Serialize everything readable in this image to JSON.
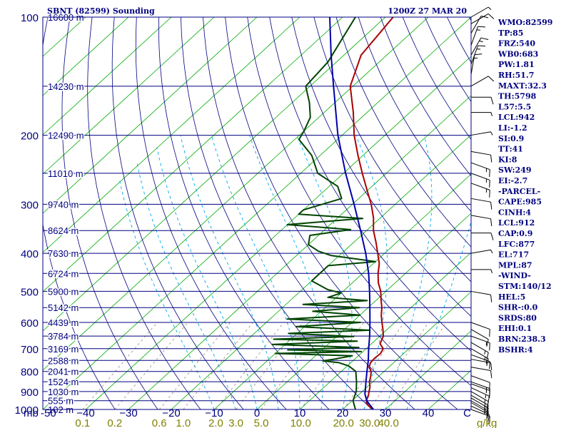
{
  "header": {
    "station": "SBNT (82599) Sounding",
    "time": "1200Z 27 MAR 20"
  },
  "chart_data": {
    "type": "line",
    "subtype": "skew-t log-p diagram",
    "pressure_unit": "mb",
    "mixing_ratio_unit": "g/kg",
    "pressure_range": [
      1000,
      100
    ],
    "temperature_range": [
      -50,
      50
    ],
    "pressure_ticks": [
      {
        "p": 100,
        "label": "100"
      },
      {
        "p": 200,
        "label": "200"
      },
      {
        "p": 300,
        "label": "300"
      },
      {
        "p": 400,
        "label": "400"
      },
      {
        "p": 500,
        "label": "500"
      },
      {
        "p": 600,
        "label": "600"
      },
      {
        "p": 700,
        "label": "700"
      },
      {
        "p": 800,
        "label": "800"
      },
      {
        "p": 900,
        "label": "900"
      },
      {
        "p": 1000,
        "label": "1000"
      }
    ],
    "height_levels": [
      {
        "p": 100,
        "label": "16600 m"
      },
      {
        "p": 150,
        "label": "14230 m"
      },
      {
        "p": 200,
        "label": "12490 m"
      },
      {
        "p": 250,
        "label": "11010 m"
      },
      {
        "p": 300,
        "label": "9740 m"
      },
      {
        "p": 350,
        "label": "8624 m"
      },
      {
        "p": 400,
        "label": "7630 m"
      },
      {
        "p": 450,
        "label": "6724 m"
      },
      {
        "p": 500,
        "label": "5900 m"
      },
      {
        "p": 550,
        "label": "5142 m"
      },
      {
        "p": 600,
        "label": "4439 m"
      },
      {
        "p": 650,
        "label": "3784 m"
      },
      {
        "p": 700,
        "label": "3169 m"
      },
      {
        "p": 750,
        "label": "2588 m"
      },
      {
        "p": 800,
        "label": "2041 m"
      },
      {
        "p": 850,
        "label": "1524 m"
      },
      {
        "p": 900,
        "label": "1030 m"
      },
      {
        "p": 950,
        "label": "555 m"
      },
      {
        "p": 1000,
        "label": "102 m"
      }
    ],
    "temperature_ticks": [
      {
        "t": -50,
        "label": "-50"
      },
      {
        "t": -40,
        "label": "−40"
      },
      {
        "t": -30,
        "label": "−30"
      },
      {
        "t": -20,
        "label": "−20"
      },
      {
        "t": -10,
        "label": "−10"
      },
      {
        "t": 0,
        "label": "0"
      },
      {
        "t": 10,
        "label": "10"
      },
      {
        "t": 20,
        "label": "20"
      },
      {
        "t": 30,
        "label": "30"
      },
      {
        "t": 40,
        "label": "40"
      },
      {
        "t": 50,
        "label": "C"
      }
    ],
    "mixing_ratio_labels": [
      "0.1",
      "0.2",
      "0.6",
      "1.0",
      "2.0",
      "3.0",
      "5.0",
      "10.0",
      "20.0",
      "30.0",
      "40.0"
    ],
    "mixing_ratio_ticks_t1000": [
      -40.7,
      -33.2,
      -22.8,
      -17.2,
      -9.6,
      -4.9,
      1.0,
      10.2,
      20.2,
      26.3,
      30.7
    ],
    "dry_adiabat_theta_K": [
      240,
      250,
      260,
      270,
      280,
      290,
      300,
      310,
      320,
      330,
      340,
      350,
      360,
      370,
      380,
      390,
      400,
      410,
      420,
      430,
      440,
      450
    ],
    "moist_adiabat_start_c": [
      -10,
      -5,
      0,
      5,
      10,
      15,
      20,
      25,
      30,
      35
    ],
    "series": [
      {
        "name": "temperature",
        "color": "#aa0000",
        "points": [
          [
            1000,
            27.2
          ],
          [
            980,
            25.2
          ],
          [
            960,
            23.8
          ],
          [
            940,
            23.0
          ],
          [
            925,
            22.6
          ],
          [
            900,
            21.6
          ],
          [
            875,
            20.6
          ],
          [
            850,
            19.2
          ],
          [
            825,
            18.2
          ],
          [
            800,
            17.0
          ],
          [
            780,
            15.4
          ],
          [
            760,
            14.6
          ],
          [
            740,
            14.4
          ],
          [
            720,
            14.6
          ],
          [
            700,
            14.0
          ],
          [
            680,
            12.0
          ],
          [
            650,
            10.8
          ],
          [
            625,
            9.0
          ],
          [
            600,
            7.0
          ],
          [
            575,
            5.0
          ],
          [
            550,
            3.2
          ],
          [
            525,
            1.0
          ],
          [
            500,
            -1.2
          ],
          [
            475,
            -4.0
          ],
          [
            450,
            -6.4
          ],
          [
            425,
            -8.6
          ],
          [
            400,
            -11.6
          ],
          [
            375,
            -14.8
          ],
          [
            350,
            -18.4
          ],
          [
            325,
            -21.6
          ],
          [
            300,
            -25.6
          ],
          [
            275,
            -30.4
          ],
          [
            250,
            -35.6
          ],
          [
            225,
            -41.2
          ],
          [
            200,
            -47.2
          ],
          [
            175,
            -53.2
          ],
          [
            150,
            -60.6
          ],
          [
            125,
            -66.0
          ],
          [
            100,
            -68.2
          ]
        ]
      },
      {
        "name": "dewpoint",
        "color": "#004400",
        "points": [
          [
            1000,
            23.0
          ],
          [
            950,
            20.2
          ],
          [
            900,
            18.6
          ],
          [
            850,
            16.2
          ],
          [
            800,
            13.4
          ],
          [
            775,
            10.4
          ],
          [
            760,
            7.2
          ],
          [
            752,
            3.0
          ],
          [
            745,
            5.0
          ],
          [
            730,
            8.6
          ],
          [
            720,
            -10.0
          ],
          [
            712,
            9.6
          ],
          [
            705,
            -8.0
          ],
          [
            695,
            8.0
          ],
          [
            683,
            -13.0
          ],
          [
            670,
            6.0
          ],
          [
            662,
            -14.0
          ],
          [
            652,
            4.0
          ],
          [
            640,
            -12.0
          ],
          [
            628,
            6.0
          ],
          [
            615,
            -12.0
          ],
          [
            600,
            2.0
          ],
          [
            588,
            -16.0
          ],
          [
            575,
            0.0
          ],
          [
            562,
            -12.0
          ],
          [
            550,
            -2.0
          ],
          [
            540,
            -16.0
          ],
          [
            528,
            -2.0
          ],
          [
            518,
            -12.0
          ],
          [
            505,
            -10.0
          ],
          [
            495,
            -14.0
          ],
          [
            470,
            -20.0
          ],
          [
            450,
            -20.0
          ],
          [
            430,
            -20.0
          ],
          [
            420,
            -10.0
          ],
          [
            405,
            -22.0
          ],
          [
            395,
            -26.0
          ],
          [
            380,
            -30.0
          ],
          [
            360,
            -32.0
          ],
          [
            348,
            -24.0
          ],
          [
            338,
            -40.0
          ],
          [
            326,
            -24.0
          ],
          [
            318,
            -40.0
          ],
          [
            310,
            -40.0
          ],
          [
            290,
            -34.0
          ],
          [
            270,
            -38.0
          ],
          [
            250,
            -46.0
          ],
          [
            225,
            -52.0
          ],
          [
            205,
            -59.0
          ],
          [
            195,
            -60.0
          ],
          [
            180,
            -62.0
          ],
          [
            165,
            -66.0
          ],
          [
            150,
            -71.0
          ],
          [
            130,
            -72.0
          ],
          [
            100,
            -77.0
          ]
        ]
      },
      {
        "name": "parcel",
        "color": "#0000aa",
        "points": [
          [
            1000,
            27.2
          ],
          [
            950,
            23.4
          ],
          [
            912,
            21.2
          ],
          [
            900,
            20.7
          ],
          [
            850,
            18.4
          ],
          [
            800,
            16.0
          ],
          [
            750,
            13.5
          ],
          [
            700,
            10.6
          ],
          [
            650,
            7.6
          ],
          [
            600,
            4.2
          ],
          [
            550,
            0.4
          ],
          [
            500,
            -3.8
          ],
          [
            450,
            -8.6
          ],
          [
            400,
            -14.4
          ],
          [
            350,
            -21.4
          ],
          [
            300,
            -29.6
          ],
          [
            250,
            -39.5
          ],
          [
            200,
            -51.0
          ],
          [
            150,
            -64.5
          ],
          [
            125,
            -73.0
          ],
          [
            100,
            -83.0
          ]
        ]
      }
    ],
    "wind_barbs": [
      {
        "p": 1000,
        "dir": 110,
        "kt": 10
      },
      {
        "p": 980,
        "dir": 115,
        "kt": 12
      },
      {
        "p": 960,
        "dir": 120,
        "kt": 15
      },
      {
        "p": 950,
        "dir": 120,
        "kt": 15
      },
      {
        "p": 935,
        "dir": 120,
        "kt": 15
      },
      {
        "p": 920,
        "dir": 120,
        "kt": 15
      },
      {
        "p": 900,
        "dir": 120,
        "kt": 15
      },
      {
        "p": 880,
        "dir": 115,
        "kt": 15
      },
      {
        "p": 860,
        "dir": 110,
        "kt": 15
      },
      {
        "p": 850,
        "dir": 110,
        "kt": 15
      },
      {
        "p": 820,
        "dir": 110,
        "kt": 10
      },
      {
        "p": 780,
        "dir": 100,
        "kt": 10
      },
      {
        "p": 745,
        "dir": 100,
        "kt": 10
      },
      {
        "p": 725,
        "dir": 110,
        "kt": 15
      },
      {
        "p": 700,
        "dir": 120,
        "kt": 15
      },
      {
        "p": 675,
        "dir": 120,
        "kt": 15
      },
      {
        "p": 650,
        "dir": 110,
        "kt": 15
      },
      {
        "p": 625,
        "dir": 120,
        "kt": 10
      },
      {
        "p": 600,
        "dir": 110,
        "kt": 10
      },
      {
        "p": 500,
        "dir": 100,
        "kt": 10
      },
      {
        "p": 440,
        "dir": 90,
        "kt": 5
      },
      {
        "p": 400,
        "dir": 80,
        "kt": 5
      },
      {
        "p": 355,
        "dir": 90,
        "kt": 10
      },
      {
        "p": 320,
        "dir": 100,
        "kt": 10
      },
      {
        "p": 290,
        "dir": 100,
        "kt": 10
      },
      {
        "p": 265,
        "dir": 110,
        "kt": 15
      },
      {
        "p": 250,
        "dir": 110,
        "kt": 15
      },
      {
        "p": 235,
        "dir": 110,
        "kt": 15
      },
      {
        "p": 220,
        "dir": 100,
        "kt": 10
      },
      {
        "p": 200,
        "dir": 80,
        "kt": 5
      },
      {
        "p": 175,
        "dir": 90,
        "kt": 5
      },
      {
        "p": 160,
        "dir": 90,
        "kt": 10
      },
      {
        "p": 150,
        "dir": 60,
        "kt": 10
      },
      {
        "p": 140,
        "dir": 10,
        "kt": 15
      },
      {
        "p": 132,
        "dir": 20,
        "kt": 15
      },
      {
        "p": 125,
        "dir": 30,
        "kt": 15
      },
      {
        "p": 118,
        "dir": 20,
        "kt": 15
      },
      {
        "p": 110,
        "dir": 30,
        "kt": 10
      },
      {
        "p": 104,
        "dir": 60,
        "kt": 10
      },
      {
        "p": 100,
        "dir": 60,
        "kt": 5
      }
    ]
  },
  "indices": [
    "WMO:82599",
    "TP:85",
    "FRZ:540",
    "WB0:683",
    "PW:1.81",
    "RH:51.7",
    "MAXT:32.3",
    "TH:5798",
    "L57:5.5",
    "LCL:942",
    "LI:-1.2",
    "SI:0.9",
    "TT:41",
    "KI:8",
    "SW:249",
    "EI:-2.7",
    "-PARCEL-",
    "CAPE:985",
    "CINH:4",
    "LCL:912",
    "CAP:0.9",
    "LFC:877",
    "EL:717",
    "MPL:87",
    "-WIND-",
    "STM:140/12",
    "HEL:5",
    "SHR-:0.0",
    "SRDS:80",
    "EHI:0.1",
    "BRN:238.3",
    "BSHR:4"
  ],
  "colors": {
    "frame": "#000080",
    "isotherm": "#00aa00",
    "dry_adiabat": "#000080",
    "moist_adiabat": "#00aaee",
    "mixing_ratio": "#998877",
    "axis_label": "#000080",
    "mixing_label": "#808000"
  }
}
